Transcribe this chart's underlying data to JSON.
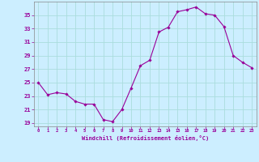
{
  "x": [
    0,
    1,
    2,
    3,
    4,
    5,
    6,
    7,
    8,
    9,
    10,
    11,
    12,
    13,
    14,
    15,
    16,
    17,
    18,
    19,
    20,
    21,
    22,
    23
  ],
  "y": [
    25.0,
    23.2,
    23.5,
    23.3,
    22.2,
    21.8,
    21.8,
    19.5,
    19.2,
    21.0,
    24.2,
    27.5,
    28.3,
    32.5,
    33.2,
    35.5,
    35.8,
    36.2,
    35.2,
    35.0,
    33.3,
    29.0,
    28.0,
    27.2
  ],
  "line_color": "#990099",
  "marker": "D",
  "marker_size": 1.8,
  "bg_color": "#cceeff",
  "grid_color": "#aadddd",
  "xlabel": "Windchill (Refroidissement éolien,°C)",
  "xlabel_color": "#990099",
  "tick_color": "#990099",
  "ylabel_ticks": [
    19,
    21,
    23,
    25,
    27,
    29,
    31,
    33,
    35
  ],
  "xlim": [
    -0.5,
    23.5
  ],
  "ylim": [
    18.5,
    37.0
  ],
  "figsize": [
    3.2,
    2.0
  ],
  "dpi": 100
}
